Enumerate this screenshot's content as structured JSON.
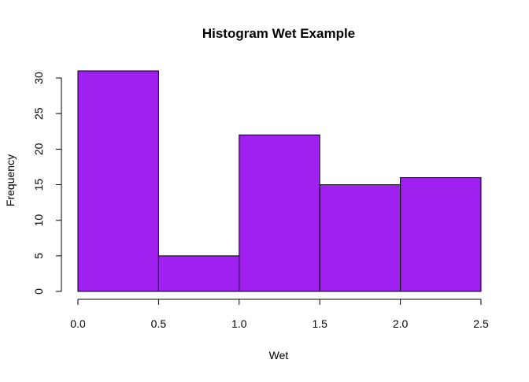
{
  "chart_data": {
    "type": "bar",
    "subtype": "histogram",
    "title": "Histogram Wet Example",
    "xlabel": "Wet",
    "ylabel": "Frequency",
    "bins": [
      {
        "start": 0.0,
        "end": 0.5,
        "count": 31
      },
      {
        "start": 0.5,
        "end": 1.0,
        "count": 5
      },
      {
        "start": 1.0,
        "end": 1.5,
        "count": 22
      },
      {
        "start": 1.5,
        "end": 2.0,
        "count": 15
      },
      {
        "start": 2.0,
        "end": 2.5,
        "count": 16
      }
    ],
    "xlim": [
      0.0,
      2.5
    ],
    "ylim": [
      0,
      31
    ],
    "x_ticks": [
      "0.0",
      "0.5",
      "1.0",
      "1.5",
      "2.0",
      "2.5"
    ],
    "y_ticks": [
      "0",
      "5",
      "10",
      "15",
      "20",
      "25",
      "30"
    ],
    "bar_color": "#a020f0",
    "bar_edge_color": "#000000",
    "grid": false,
    "legend": "none"
  }
}
